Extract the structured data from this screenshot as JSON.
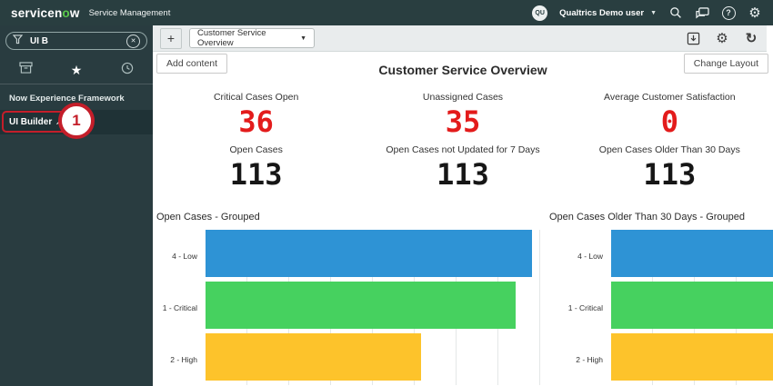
{
  "header": {
    "logo_primary": "servicen",
    "logo_accent": "o",
    "logo_suffix": "w",
    "app_name": "Service Management",
    "user": {
      "initials": "QU",
      "name": "Qualtrics Demo user"
    },
    "icons": [
      "search-icon",
      "chat-icon",
      "help-icon",
      "gear-icon"
    ],
    "bg_color": "#293e40"
  },
  "sidebar": {
    "search": {
      "value": "UI B",
      "filter_icon": "funnel-icon",
      "clear_icon": "circle-x-icon",
      "clear_glyph": "✕"
    },
    "tabs": [
      {
        "name": "all-applications",
        "icon": "archive-box-icon",
        "active": false
      },
      {
        "name": "favorites",
        "icon": "star-icon",
        "glyph": "★",
        "active": true
      },
      {
        "name": "history",
        "icon": "clock-icon",
        "active": false
      }
    ],
    "section_label": "Now Experience Framework",
    "items": [
      {
        "label": "UI Builder",
        "icon": "external-link-arrow",
        "arrow_glyph": "↗",
        "annotated": true
      }
    ],
    "annotation": {
      "number": "1",
      "color": "#c41e2a"
    }
  },
  "toolbar": {
    "add_tab_glyph": "+",
    "dashboard_selector": {
      "value": "Customer Service Overview",
      "caret": "▼"
    },
    "icons": [
      "save-icon",
      "gear-icon",
      "refresh-icon"
    ],
    "refresh_glyph": "↻",
    "gear_glyph": "⚙",
    "add_content_label": "Add content",
    "change_layout_label": "Change Layout"
  },
  "dashboard": {
    "title": "Customer Service Overview",
    "metric_red": "#e31b1b",
    "metric_black": "#161616",
    "metrics": [
      {
        "label": "Critical Cases Open",
        "value": "36",
        "color": "#e31b1b"
      },
      {
        "label": "Unassigned Cases",
        "value": "35",
        "color": "#e31b1b"
      },
      {
        "label": "Average Customer Satisfaction",
        "value": "0",
        "color": "#e31b1b"
      },
      {
        "label": "Open Cases",
        "value": "113",
        "color": "#161616"
      },
      {
        "label": "Open Cases not Updated for 7 Days",
        "value": "113",
        "color": "#161616"
      },
      {
        "label": "Open Cases Older Than 30 Days",
        "value": "113",
        "color": "#161616"
      }
    ]
  },
  "chart_data": [
    {
      "type": "bar",
      "orientation": "horizontal",
      "title": "Open Cases - Grouped",
      "categories": [
        "4 - Low",
        "1 - Critical",
        "2 - High"
      ],
      "values": [
        100,
        95,
        66
      ],
      "value_unit": "percent_of_longest_bar (axis value labels not visible / cut off)",
      "colors": [
        "#2e93d5",
        "#46d15f",
        "#fdc32b"
      ],
      "grid": true,
      "legend": "none",
      "clipped_right": false
    },
    {
      "type": "bar",
      "orientation": "horizontal",
      "title": "Open Cases Older Than 30 Days - Grouped",
      "categories": [
        "4 - Low",
        "1 - Critical",
        "2 - High"
      ],
      "values": [
        100,
        100,
        100
      ],
      "value_unit": "bars extend past right edge of screenshot (clipped)",
      "colors": [
        "#2e93d5",
        "#46d15f",
        "#fdc32b"
      ],
      "grid": true,
      "legend": "none",
      "clipped_right": true
    }
  ]
}
